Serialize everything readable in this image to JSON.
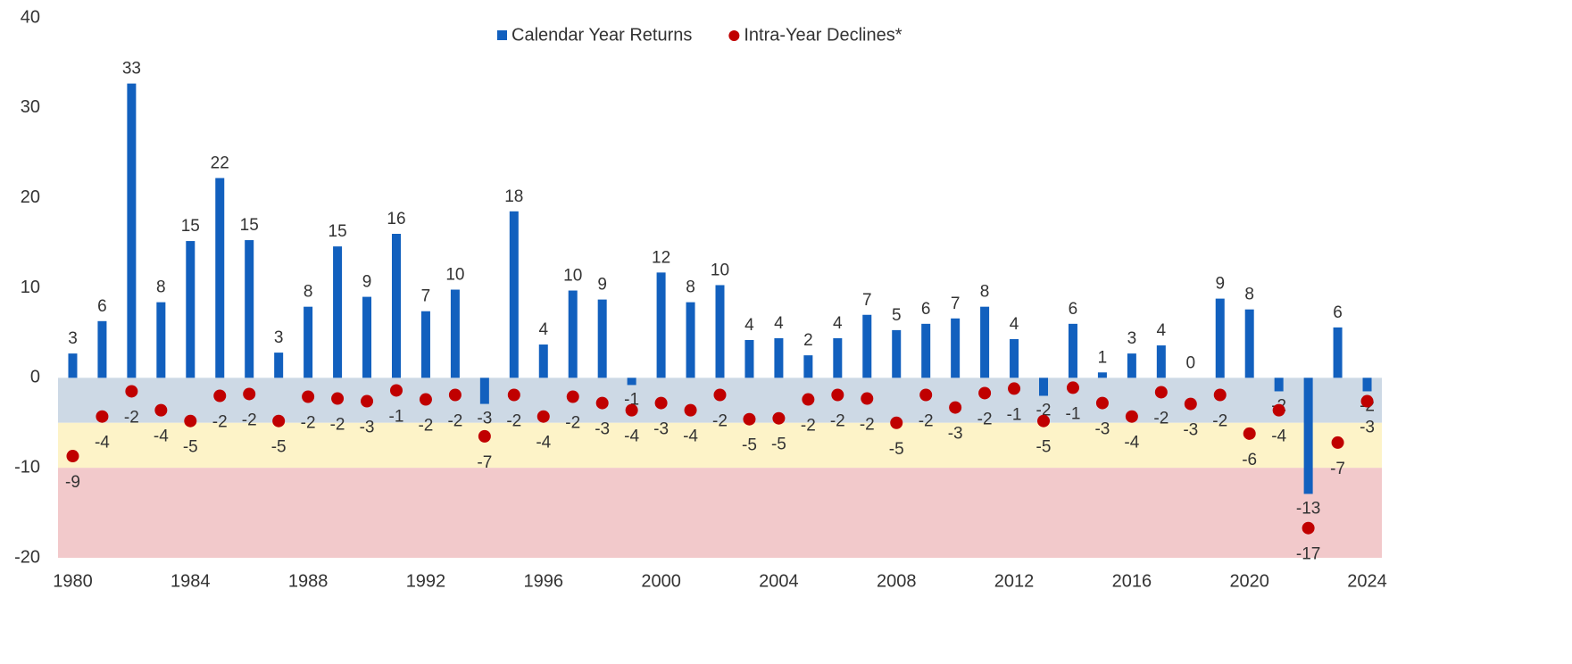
{
  "chart_data": {
    "type": "bar",
    "categories": [
      "1980",
      null,
      null,
      null,
      "1984",
      null,
      null,
      null,
      "1988",
      null,
      null,
      null,
      "1992",
      null,
      null,
      null,
      "1996",
      null,
      null,
      null,
      "2000",
      null,
      null,
      null,
      "2004",
      null,
      null,
      null,
      "2008",
      null,
      null,
      null,
      "2012",
      null,
      null,
      null,
      "2016",
      null,
      null,
      null,
      "2020",
      null,
      null,
      null,
      "2024"
    ],
    "series": [
      {
        "name": "Calendar Year Returns",
        "type": "bar",
        "color": "#1260be",
        "values": [
          2.7,
          6.3,
          32.7,
          8.4,
          15.2,
          22.2,
          15.3,
          2.8,
          7.9,
          14.6,
          9.0,
          16.0,
          7.4,
          9.8,
          -2.9,
          18.5,
          3.7,
          9.7,
          8.7,
          -0.8,
          11.7,
          8.4,
          10.3,
          4.2,
          4.4,
          2.5,
          4.4,
          7.0,
          5.3,
          6.0,
          6.6,
          7.9,
          4.3,
          -2.0,
          6.0,
          0.6,
          2.7,
          3.6,
          0.0,
          8.8,
          7.6,
          -1.5,
          -12.9,
          5.6,
          -1.5
        ],
        "value_labels": [
          "3",
          "6",
          "33",
          "8",
          "15",
          "22",
          "15",
          "3",
          "8",
          "15",
          "9",
          "16",
          "7",
          "10",
          "-3",
          "18",
          "4",
          "10",
          "9",
          "-1",
          "12",
          "8",
          "10",
          "4",
          "4",
          "2",
          "4",
          "7",
          "5",
          "6",
          "7",
          "8",
          "4",
          "-2",
          "6",
          "1",
          "3",
          "4",
          "0",
          "9",
          "8",
          "-2",
          "-13",
          "6",
          "-2"
        ]
      },
      {
        "name": "Intra-Year Declines*",
        "type": "scatter",
        "color": "#c00000",
        "values": [
          -8.7,
          -4.3,
          -1.5,
          -3.6,
          -4.8,
          -2.0,
          -1.8,
          -4.8,
          -2.1,
          -2.3,
          -2.6,
          -1.4,
          -2.4,
          -1.9,
          -6.5,
          -1.9,
          -4.3,
          -2.1,
          -2.8,
          -3.6,
          -2.8,
          -3.6,
          -1.9,
          -4.6,
          -4.5,
          -2.4,
          -1.9,
          -2.3,
          -5.0,
          -1.9,
          -3.3,
          -1.7,
          -1.2,
          -4.8,
          -1.1,
          -2.8,
          -4.3,
          -1.6,
          -2.9,
          -1.9,
          -6.2,
          -3.6,
          -16.7,
          -7.2,
          -2.6
        ],
        "value_labels": [
          "-9",
          "-4",
          "-2",
          "-4",
          "-5",
          "-2",
          "-2",
          "-5",
          "-2",
          "-2",
          "-3",
          "-1",
          "-2",
          "-2",
          "-7",
          "-2",
          "-4",
          "-2",
          "-3",
          "-4",
          "-3",
          "-4",
          "-2",
          "-5",
          "-5",
          "-2",
          "-2",
          "-2",
          "-5",
          "-2",
          "-3",
          "-2",
          "-1",
          "-5",
          "-1",
          "-3",
          "-4",
          "-2",
          "-3",
          "-2",
          "-6",
          "-4",
          "-17",
          "-7",
          "-3"
        ]
      }
    ],
    "ylim": [
      -20,
      40
    ],
    "yticks": [
      -20,
      -10,
      0,
      10,
      20,
      30,
      40
    ],
    "grid": false,
    "legend": "top",
    "bands": [
      {
        "from": 0,
        "to": -5,
        "color": "#cdd9e5"
      },
      {
        "from": -5,
        "to": -10,
        "color": "#fdf3c8"
      },
      {
        "from": -10,
        "to": -20,
        "color": "#f2c9cb"
      }
    ]
  }
}
